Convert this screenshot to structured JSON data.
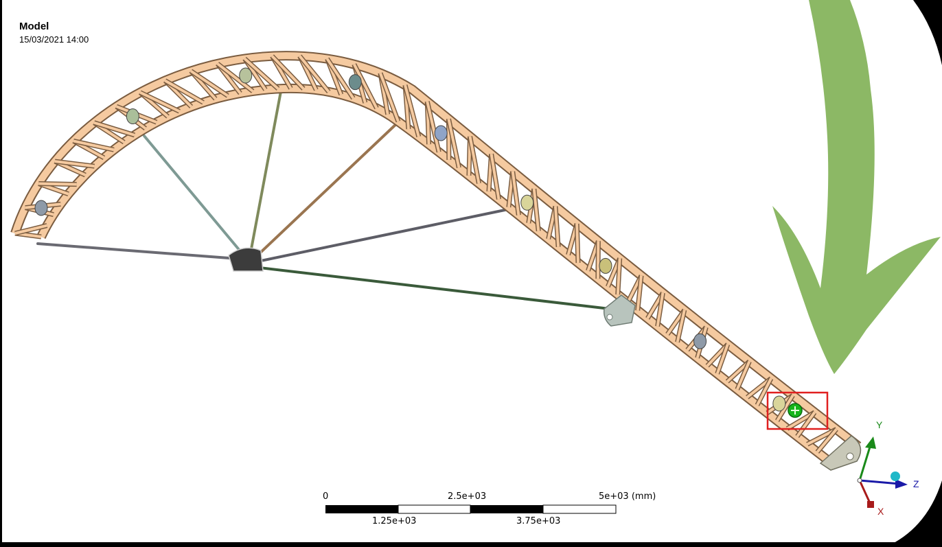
{
  "view": {
    "title": "Model",
    "date": "15/03/2021 14:00"
  },
  "scale_bar": {
    "ticks_top": [
      "0",
      "2.5e+03",
      "5e+03 (mm)"
    ],
    "ticks_bottom": [
      "1.25e+03",
      "3.75e+03"
    ]
  },
  "triad": {
    "x_label": "X",
    "y_label": "Y",
    "z_label": "Z"
  },
  "annotations": {
    "arrow_color": "#8cb865",
    "highlight_color": "#e01f1f",
    "highlight_marker_color": "#16b51b"
  },
  "colors": {
    "viewport_bg": "#ffffff",
    "frame_bg": "#000000",
    "truss": "#f5caa0",
    "truss_edge": "#7a5c40"
  }
}
